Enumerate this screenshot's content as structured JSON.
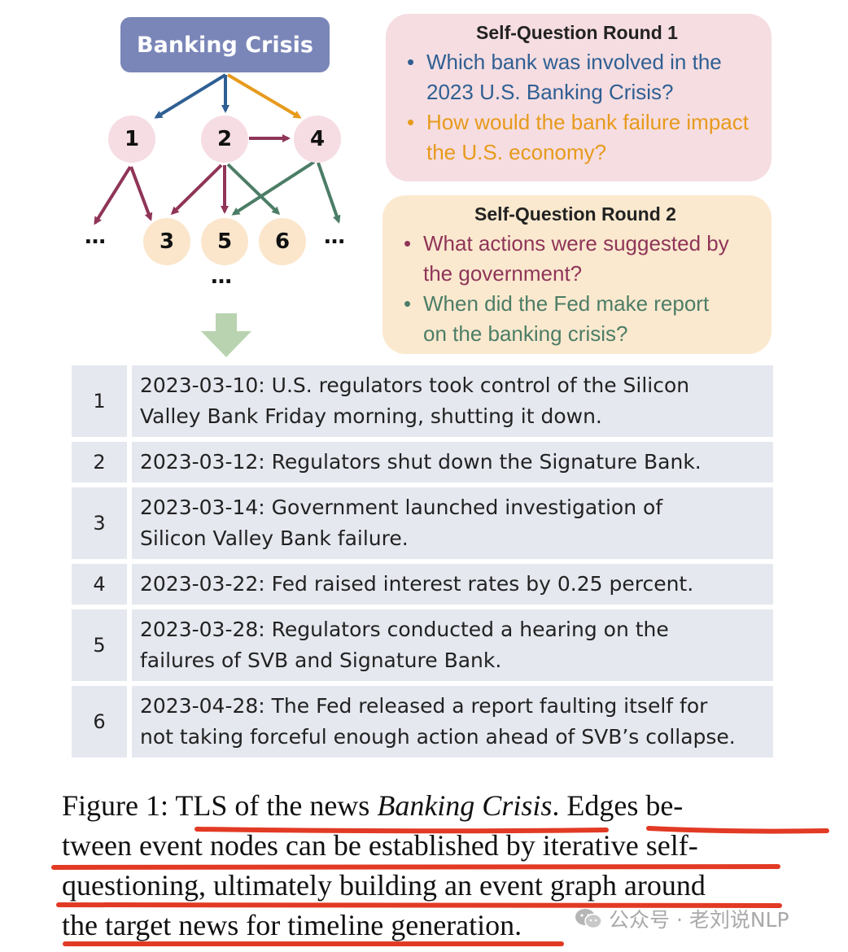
{
  "graph": {
    "root_label": "Banking Crisis",
    "nodes": [
      {
        "id": "1",
        "label": "1"
      },
      {
        "id": "2",
        "label": "2"
      },
      {
        "id": "4",
        "label": "4"
      },
      {
        "id": "3",
        "label": "3"
      },
      {
        "id": "5",
        "label": "5"
      },
      {
        "id": "6",
        "label": "6"
      }
    ],
    "ellipsis": "…",
    "colors": {
      "root": "#7a86b8",
      "first_layer_node": "#f6dde3",
      "second_layer_node": "#fbe6cc",
      "edge_blue": "#2f5f93",
      "edge_orange": "#e79a1c",
      "edge_maroon": "#8f3558",
      "edge_green": "#4c7d66"
    }
  },
  "self_question_rounds": [
    {
      "title": "Self-Question Round 1",
      "questions": [
        {
          "lines": [
            "Which bank was involved in the",
            "2023 U.S. Banking Crisis?"
          ],
          "color": "#2f5f93"
        },
        {
          "lines": [
            "How would the bank failure impact",
            "the U.S. economy?"
          ],
          "color": "#e79a1c"
        }
      ]
    },
    {
      "title": "Self-Question Round 2",
      "questions": [
        {
          "lines": [
            "What actions were suggested by",
            "the government?"
          ],
          "color": "#8f3558"
        },
        {
          "lines": [
            "When did the Fed make report",
            "on the banking crisis?"
          ],
          "color": "#4c7d66"
        }
      ]
    }
  ],
  "bullet": "•",
  "timeline": [
    {
      "num": "1",
      "lines": [
        "2023-03-10: U.S. regulators took control of the Silicon",
        "Valley Bank Friday morning, shutting it down."
      ]
    },
    {
      "num": "2",
      "lines": [
        "2023-03-12: Regulators shut down the Signature Bank."
      ]
    },
    {
      "num": "3",
      "lines": [
        "2023-03-14: Government launched investigation of",
        "Silicon Valley Bank failure."
      ]
    },
    {
      "num": "4",
      "lines": [
        "2023-03-22: Fed raised interest rates by 0.25 percent."
      ]
    },
    {
      "num": "5",
      "lines": [
        "2023-03-28: Regulators conducted a hearing on the",
        "failures of SVB and Signature Bank."
      ]
    },
    {
      "num": "6",
      "lines": [
        "2023-04-28: The Fed released a report faulting itself for",
        "not taking forceful enough action ahead of SVB’s collapse."
      ]
    }
  ],
  "caption": {
    "label": "Figure 1:",
    "text_before_title": "TLS of the news",
    "title_italic": "Banking Crisis",
    "line1_tail": ". Edges be-",
    "line2": "tween event nodes can be established by iterative self-",
    "line3": "questioning, ultimately building an event graph around",
    "line4": "the target news for timeline generation."
  },
  "watermark": {
    "text": "公众号 · 老刘说NLP"
  },
  "annotation_color": "#e23a24"
}
